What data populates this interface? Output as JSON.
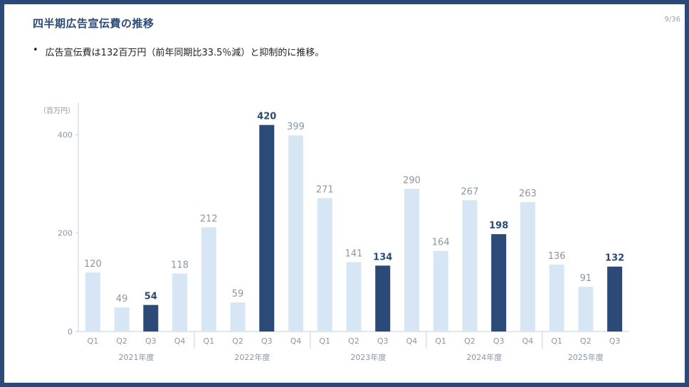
{
  "slide": {
    "title": "四半期広告宣伝費の推移",
    "page_number": "9/36",
    "bullet": "広告宣伝費は132百万円（前年同期比33.5％減）と抑制的に推移。",
    "bullet_marker": "•"
  },
  "colors": {
    "highlight": "#2c4a78",
    "normal": "#d7e6f5",
    "border": "#2c4a78",
    "axis": "#c5cfdc"
  },
  "chart_data": {
    "type": "bar",
    "ylabel": "（百万円）",
    "ylim": [
      0,
      460
    ],
    "yticks": [
      0,
      200,
      400
    ],
    "grid": false,
    "categories": [
      "Q1",
      "Q2",
      "Q3",
      "Q4",
      "Q1",
      "Q2",
      "Q3",
      "Q4",
      "Q1",
      "Q2",
      "Q3",
      "Q4",
      "Q1",
      "Q2",
      "Q3",
      "Q4",
      "Q1",
      "Q2",
      "Q3"
    ],
    "fiscal_years": [
      "2021年度",
      "2022年度",
      "2023年度",
      "2024年度",
      "2025年度"
    ],
    "values": [
      120,
      49,
      54,
      118,
      212,
      59,
      420,
      399,
      271,
      141,
      134,
      290,
      164,
      267,
      198,
      263,
      136,
      91,
      132
    ],
    "highlighted_quarter": "Q3"
  }
}
